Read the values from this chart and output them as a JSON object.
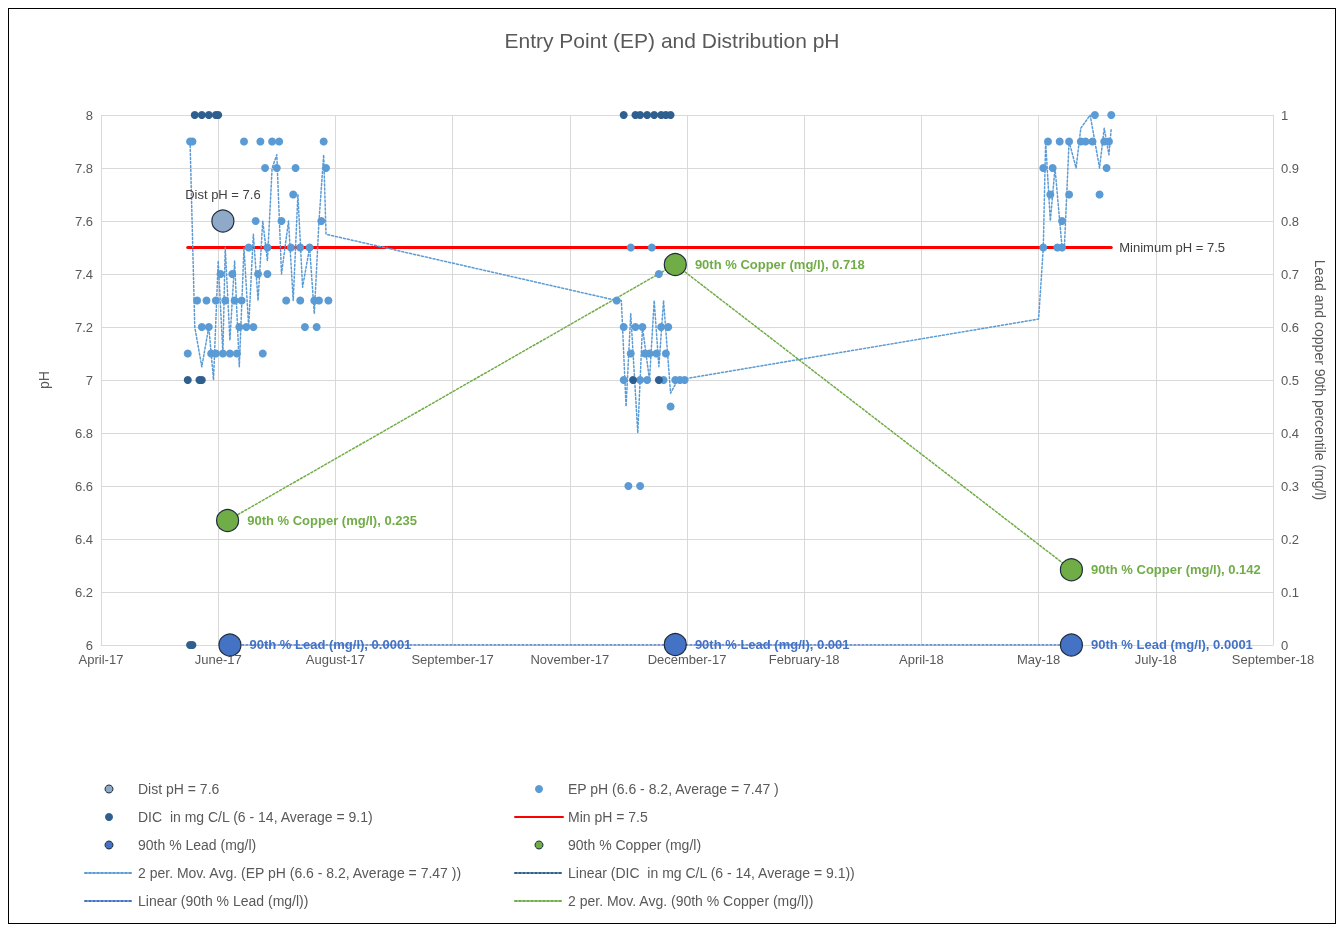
{
  "chart_data": {
    "type": "scatter",
    "title": "Entry Point (EP) and Distribution pH",
    "ylabel": "pH",
    "y2label": "Lead and copper 90th percentile (mg/l)",
    "xlim": [
      "2017-04-25",
      "2018-09-07"
    ],
    "xticks": [
      {
        "value": "2017-04-25",
        "label": "April-17"
      },
      {
        "value": "2017-06-14",
        "label": "June-17"
      },
      {
        "value": "2017-08-03",
        "label": "August-17"
      },
      {
        "value": "2017-09-22",
        "label": "September-17"
      },
      {
        "value": "2017-11-11",
        "label": "November-17"
      },
      {
        "value": "2017-12-31",
        "label": "December-17"
      },
      {
        "value": "2018-02-19",
        "label": "February-18"
      },
      {
        "value": "2018-04-10",
        "label": "April-18"
      },
      {
        "value": "2018-05-30",
        "label": "May-18"
      },
      {
        "value": "2018-07-19",
        "label": "July-18"
      },
      {
        "value": "2018-09-07",
        "label": "September-18"
      }
    ],
    "ylim": [
      6,
      8
    ],
    "yticks": [
      6,
      6.2,
      6.4,
      6.6,
      6.8,
      7,
      7.2,
      7.4,
      7.6,
      7.8,
      8
    ],
    "y2lim": [
      0,
      1
    ],
    "y2ticks": [
      0,
      0.1,
      0.2,
      0.3,
      0.4,
      0.5,
      0.6,
      0.7,
      0.8,
      0.9,
      1
    ],
    "grid": true,
    "legend": "bottom",
    "series": [
      {
        "name": "Dist pH = 7.6",
        "color": "#8faac9",
        "marker": "circle",
        "x": [
          "2017-06-16"
        ],
        "values": [
          7.6
        ],
        "value_labels": [
          "Dist pH = 7.6"
        ]
      },
      {
        "name": "EP pH (6.6 - 8.2, Average = 7.47 )",
        "color": "#5b9bd5",
        "marker": "circle",
        "x": [
          "2017-06-02",
          "2017-06-03",
          "2017-06-25",
          "2017-07-02",
          "2017-07-07",
          "2017-07-10",
          "2017-07-29",
          "2017-07-04",
          "2017-07-09",
          "2017-07-17",
          "2017-07-30",
          "2017-07-16",
          "2017-06-30",
          "2017-07-11",
          "2017-07-28",
          "2017-06-27",
          "2017-07-05",
          "2017-07-15",
          "2017-07-19",
          "2017-07-23",
          "2017-06-15",
          "2017-06-20",
          "2017-07-01",
          "2017-07-05",
          "2017-06-05",
          "2017-06-09",
          "2017-06-13",
          "2017-06-17",
          "2017-06-21",
          "2017-06-24",
          "2017-07-13",
          "2017-07-19",
          "2017-07-25",
          "2017-07-27",
          "2017-07-31",
          "2017-06-07",
          "2017-06-10",
          "2017-06-23",
          "2017-06-26",
          "2017-06-29",
          "2017-07-21",
          "2017-07-26",
          "2017-06-01",
          "2017-06-11",
          "2017-06-13",
          "2017-06-16",
          "2017-06-19",
          "2017-06-22",
          "2017-07-03",
          "2017-12-07",
          "2017-12-16",
          "2017-12-19",
          "2017-12-01",
          "2017-12-04",
          "2017-12-09",
          "2017-12-12",
          "2017-12-20",
          "2017-12-23",
          "2017-12-07",
          "2017-12-13",
          "2017-12-15",
          "2017-12-18",
          "2017-12-22",
          "2017-12-04",
          "2017-12-11",
          "2017-12-14",
          "2017-12-21",
          "2017-12-26",
          "2017-12-28",
          "2017-12-30",
          "2017-12-24",
          "2017-12-06",
          "2017-12-11",
          "2018-06-23",
          "2018-06-30",
          "2018-06-03",
          "2018-06-08",
          "2018-06-12",
          "2018-06-17",
          "2018-06-19",
          "2018-06-22",
          "2018-06-27",
          "2018-06-29",
          "2018-06-01",
          "2018-06-05",
          "2018-06-28",
          "2018-06-04",
          "2018-06-12",
          "2018-06-25",
          "2018-06-09",
          "2018-06-01",
          "2018-06-07",
          "2018-06-09"
        ],
        "values": [
          7.9,
          7.9,
          7.9,
          7.9,
          7.9,
          7.9,
          7.9,
          7.8,
          7.8,
          7.8,
          7.8,
          7.7,
          7.6,
          7.6,
          7.6,
          7.5,
          7.5,
          7.5,
          7.5,
          7.5,
          7.4,
          7.4,
          7.4,
          7.4,
          7.3,
          7.3,
          7.3,
          7.3,
          7.3,
          7.3,
          7.3,
          7.3,
          7.3,
          7.3,
          7.3,
          7.2,
          7.2,
          7.2,
          7.2,
          7.2,
          7.2,
          7.2,
          7.1,
          7.1,
          7.1,
          7.1,
          7.1,
          7.1,
          7.1,
          7.5,
          7.5,
          7.4,
          7.3,
          7.2,
          7.2,
          7.2,
          7.2,
          7.2,
          7.1,
          7.1,
          7.1,
          7.1,
          7.1,
          7,
          7,
          7,
          7,
          7,
          7,
          7,
          6.9,
          6.6,
          6.6,
          8,
          8,
          7.9,
          7.9,
          7.9,
          7.9,
          7.9,
          7.9,
          7.9,
          7.9,
          7.8,
          7.8,
          7.8,
          7.7,
          7.7,
          7.7,
          7.6,
          7.5,
          7.5,
          7.5
        ]
      },
      {
        "name": "DIC  in mg C/L (6 - 14, Average = 9.1)",
        "color": "#2e5f8f",
        "marker": "circle",
        "x": [
          "2017-06-04",
          "2017-06-07",
          "2017-06-10",
          "2017-06-13",
          "2017-06-14",
          "2017-06-01",
          "2017-06-06",
          "2017-06-07",
          "2017-06-02",
          "2017-06-03",
          "2017-12-04",
          "2017-12-09",
          "2017-12-11",
          "2017-12-14",
          "2017-12-17",
          "2017-12-20",
          "2017-12-22",
          "2017-12-24",
          "2017-12-08",
          "2017-12-19"
        ],
        "values": [
          8,
          8,
          8,
          8,
          8,
          7,
          7,
          7,
          6,
          6,
          8,
          8,
          8,
          8,
          8,
          8,
          8,
          8,
          7,
          7
        ]
      },
      {
        "name": "Min pH = 7.5",
        "type": "line",
        "color": "#ff0000",
        "line_style": "solid",
        "x": [
          "2017-06-01",
          "2018-06-30"
        ],
        "values": [
          7.5,
          7.5
        ],
        "value_labels": [
          null,
          "Minimum pH = 7.5"
        ]
      },
      {
        "name": "90th % Lead (mg/l)",
        "axis": "y2",
        "color": "#4472c4",
        "marker": "circle",
        "x": [
          "2017-06-19",
          "2017-12-26",
          "2018-06-13"
        ],
        "values": [
          0.0001,
          0.001,
          0.0001
        ],
        "value_labels": [
          "90th % Lead (mg/l), 0.0001",
          "90th % Lead (mg/l), 0.001",
          "90th % Lead (mg/l), 0.0001"
        ]
      },
      {
        "name": "90th % Copper (mg/l)",
        "axis": "y2",
        "color": "#70ad47",
        "marker": "circle",
        "x": [
          "2017-06-18",
          "2017-12-26",
          "2018-06-13"
        ],
        "values": [
          0.235,
          0.718,
          0.142
        ],
        "value_labels": [
          "90th % Copper (mg/l), 0.235",
          "90th % Copper (mg/l), 0.718",
          "90th % Copper (mg/l), 0.142"
        ]
      },
      {
        "name": "2 per. Mov. Avg. (EP pH (6.6 - 8.2, Average = 7.47 ))",
        "type": "line",
        "color": "#5b9bd5",
        "line_style": "dotted",
        "x": [
          "2017-06-02",
          "2017-06-04",
          "2017-06-07",
          "2017-06-10",
          "2017-06-12",
          "2017-06-14",
          "2017-06-16",
          "2017-06-17",
          "2017-06-19",
          "2017-06-21",
          "2017-06-23",
          "2017-06-25",
          "2017-06-27",
          "2017-06-29",
          "2017-07-01",
          "2017-07-03",
          "2017-07-05",
          "2017-07-07",
          "2017-07-09",
          "2017-07-11",
          "2017-07-14",
          "2017-07-16",
          "2017-07-18",
          "2017-07-20",
          "2017-07-23",
          "2017-07-25",
          "2017-07-27",
          "2017-07-29",
          "2017-07-30",
          "2017-12-01",
          "2017-12-03",
          "2017-12-05",
          "2017-12-07",
          "2017-12-10",
          "2017-12-12",
          "2017-12-15",
          "2017-12-17",
          "2017-12-19",
          "2017-12-21",
          "2017-12-24",
          "2017-12-27",
          "2018-05-30",
          "2018-06-01",
          "2018-06-02",
          "2018-06-04",
          "2018-06-06",
          "2018-06-09",
          "2018-06-10",
          "2018-06-12",
          "2018-06-15",
          "2018-06-17",
          "2018-06-21",
          "2018-06-23",
          "2018-06-25",
          "2018-06-27",
          "2018-06-29",
          "2018-06-30"
        ],
        "values": [
          7.9,
          7.2,
          7.05,
          7.2,
          7,
          7.45,
          7.1,
          7.5,
          7.15,
          7.45,
          7.05,
          7.5,
          7.2,
          7.55,
          7.3,
          7.6,
          7.45,
          7.8,
          7.85,
          7.4,
          7.6,
          7.3,
          7.7,
          7.35,
          7.5,
          7.25,
          7.6,
          7.85,
          7.55,
          7.3,
          7.3,
          6.9,
          7.25,
          6.8,
          7.2,
          7,
          7.3,
          7.05,
          7.3,
          6.95,
          7,
          7.23,
          7.5,
          7.9,
          7.6,
          7.8,
          7.5,
          7.5,
          7.9,
          7.8,
          7.95,
          8,
          7.9,
          7.8,
          7.95,
          7.85,
          7.95
        ]
      },
      {
        "name": "Linear (DIC  in mg C/L (6 - 14, Average = 9.1))",
        "type": "line",
        "color": "#2e5f8f",
        "line_style": "dotted"
      },
      {
        "name": "Linear (90th % Lead (mg/l))",
        "type": "line",
        "axis": "y2",
        "color": "#4472c4",
        "line_style": "dotted",
        "x": [
          "2017-06-19",
          "2018-06-13"
        ],
        "values": [
          0,
          0
        ]
      },
      {
        "name": "2 per. Mov. Avg. (90th % Copper (mg/l))",
        "type": "line",
        "axis": "y2",
        "color": "#70ad47",
        "line_style": "dotted",
        "x": [
          "2017-06-18",
          "2017-12-26",
          "2018-06-13"
        ],
        "values": [
          0.235,
          0.718,
          0.142
        ]
      }
    ]
  }
}
